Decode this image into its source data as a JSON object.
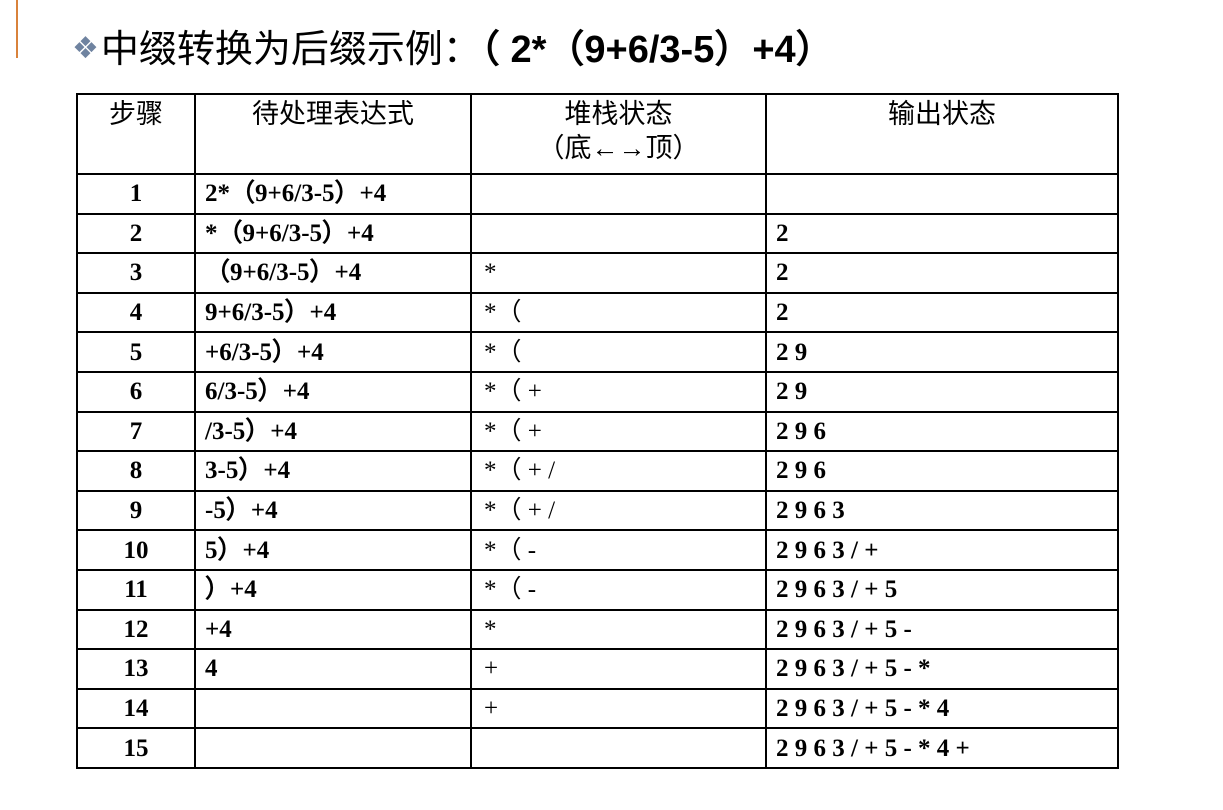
{
  "title": {
    "icon": "diamond-cluster-icon",
    "text": "中缀转换为后缀示例：",
    "expression": "（ 2*（9+6/3-5）+4）"
  },
  "colors": {
    "accent": "#d9823b",
    "icon": "#6f83a0"
  },
  "table": {
    "headers": [
      "步骤",
      "待处理表达式",
      "堆栈状态",
      "输出状态"
    ],
    "stack_header_sub": "（底←→顶）",
    "rows": [
      {
        "step": "1",
        "expr": "2*（9+6/3-5）+4",
        "stack": "",
        "output": ""
      },
      {
        "step": "2",
        "expr": "*（9+6/3-5）+4",
        "stack": "",
        "output": "2"
      },
      {
        "step": "3",
        "expr": "（9+6/3-5）+4",
        "stack": "*",
        "output": "2"
      },
      {
        "step": "4",
        "expr": "9+6/3-5）+4",
        "stack": "*（",
        "output": "2"
      },
      {
        "step": "5",
        "expr": "+6/3-5）+4",
        "stack": "*（",
        "output": "2 9"
      },
      {
        "step": "6",
        "expr": "6/3-5）+4",
        "stack": "*（ +",
        "output": "2 9"
      },
      {
        "step": "7",
        "expr": "/3-5）+4",
        "stack": "*（ +",
        "output": "2 9 6"
      },
      {
        "step": "8",
        "expr": "3-5）+4",
        "stack": "*（ + /",
        "output": "2 9 6"
      },
      {
        "step": "9",
        "expr": "-5）+4",
        "stack": "*（ + /",
        "output": "2 9 6 3"
      },
      {
        "step": "10",
        "expr": "5）+4",
        "stack": "*（ -",
        "output": "2 9 6 3 / +"
      },
      {
        "step": "11",
        "expr": "）+4",
        "stack": "*（ -",
        "output": "2 9 6 3 / + 5"
      },
      {
        "step": "12",
        "expr": "+4",
        "stack": "*",
        "output": "2 9 6 3 / + 5 -"
      },
      {
        "step": "13",
        "expr": "4",
        "stack": "+",
        "output": "2 9 6 3 / + 5 - *"
      },
      {
        "step": "14",
        "expr": "",
        "stack": "+",
        "output": "2 9 6 3 / + 5 - * 4"
      },
      {
        "step": "15",
        "expr": "",
        "stack": "",
        "output": "2 9 6 3 / + 5 - * 4 +"
      }
    ]
  }
}
